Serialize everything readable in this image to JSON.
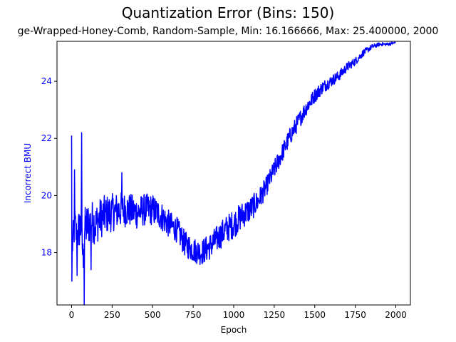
{
  "chart_data": {
    "type": "line",
    "title": "Quantization Error (Bins: 150)",
    "subtitle": "ge-Wrapped-Honey-Comb, Random-Sample, Min: 16.166666, Max: 25.400000, 2000",
    "xlabel": "Epoch",
    "ylabel": "Incorrect BMU",
    "xlim": [
      -90,
      2090
    ],
    "ylim": [
      16.166666,
      25.4
    ],
    "xticks": [
      0,
      250,
      500,
      750,
      1000,
      1250,
      1500,
      1750,
      2000
    ],
    "yticks": [
      18,
      20,
      22,
      24
    ],
    "grid": false,
    "legend": "none",
    "series": [
      {
        "color": "#0000ff",
        "x": [
          0,
          10,
          20,
          30,
          40,
          50,
          60,
          70,
          80,
          90,
          100,
          125,
          150,
          175,
          200,
          250,
          300,
          350,
          400,
          450,
          500,
          550,
          600,
          650,
          700,
          750,
          800,
          850,
          900,
          950,
          1000,
          1050,
          1100,
          1150,
          1200,
          1250,
          1300,
          1350,
          1400,
          1450,
          1500,
          1550,
          1600,
          1650,
          1700,
          1750,
          1800,
          1850,
          1900,
          1950,
          2000
        ],
        "y": [
          18.0,
          18.5,
          19.0,
          18.6,
          18.7,
          18.9,
          19.0,
          17.8,
          18.8,
          18.9,
          19.0,
          19.1,
          19.0,
          19.2,
          19.3,
          19.4,
          19.5,
          19.5,
          19.4,
          19.5,
          19.5,
          19.3,
          19.0,
          18.8,
          18.3,
          18.1,
          18.0,
          18.2,
          18.5,
          18.8,
          19.0,
          19.3,
          19.5,
          19.8,
          20.3,
          20.9,
          21.5,
          22.1,
          22.6,
          23.1,
          23.5,
          23.8,
          24.0,
          24.2,
          24.5,
          24.7,
          25.0,
          25.2,
          25.3,
          25.3,
          25.35
        ]
      }
    ],
    "noise": [
      [
        0,
        0.6
      ],
      [
        60,
        0.8
      ],
      [
        200,
        0.7
      ],
      [
        350,
        0.6
      ],
      [
        500,
        0.55
      ],
      [
        650,
        0.45
      ],
      [
        800,
        0.45
      ],
      [
        1000,
        0.5
      ],
      [
        1100,
        0.45
      ],
      [
        1200,
        0.35
      ],
      [
        1400,
        0.3
      ],
      [
        1600,
        0.2
      ],
      [
        1800,
        0.12
      ],
      [
        1900,
        0.06
      ],
      [
        2000,
        0.05
      ]
    ],
    "spikes": [
      {
        "x": 1,
        "y": 22.1
      },
      {
        "x": 3,
        "y": 17.0
      },
      {
        "x": 18,
        "y": 20.9
      },
      {
        "x": 35,
        "y": 17.2
      },
      {
        "x": 62,
        "y": 22.2
      },
      {
        "x": 78,
        "y": 16.166666
      },
      {
        "x": 120,
        "y": 17.4
      },
      {
        "x": 310,
        "y": 20.8
      }
    ]
  }
}
